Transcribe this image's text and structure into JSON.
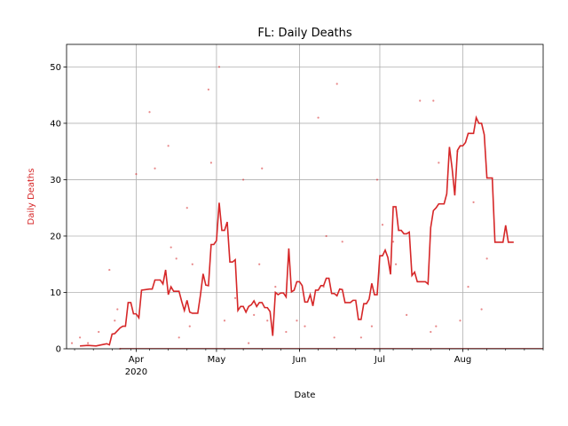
{
  "chart_data": {
    "type": "line",
    "title": "FL: Daily Deaths",
    "xlabel": "Date",
    "ylabel": "Daily Deaths",
    "x_range": [
      "2020-03-06",
      "2020-08-31"
    ],
    "ylim": [
      0,
      54
    ],
    "grid": true,
    "colors": {
      "series": "#d62728",
      "grid": "#b0b0b0",
      "axis": "#000000"
    },
    "x_ticks": [
      {
        "date": "2020-04-01",
        "label": "Apr",
        "sublabel": "2020"
      },
      {
        "date": "2020-05-01",
        "label": "May",
        "sublabel": ""
      },
      {
        "date": "2020-06-01",
        "label": "Jun",
        "sublabel": ""
      },
      {
        "date": "2020-07-01",
        "label": "Jul",
        "sublabel": ""
      },
      {
        "date": "2020-08-01",
        "label": "Aug",
        "sublabel": ""
      }
    ],
    "y_ticks": [
      0,
      10,
      20,
      30,
      40,
      50
    ],
    "daily_points": [
      [
        "2020-03-08",
        1
      ],
      [
        "2020-03-11",
        2
      ],
      [
        "2020-03-14",
        1
      ],
      [
        "2020-03-18",
        3
      ],
      [
        "2020-03-22",
        14
      ],
      [
        "2020-03-24",
        5
      ],
      [
        "2020-03-25",
        7
      ],
      [
        "2020-03-26",
        0
      ],
      [
        "2020-04-01",
        31
      ],
      [
        "2020-04-06",
        42
      ],
      [
        "2020-04-08",
        32
      ],
      [
        "2020-04-13",
        36
      ],
      [
        "2020-04-14",
        18
      ],
      [
        "2020-04-16",
        16
      ],
      [
        "2020-04-17",
        2
      ],
      [
        "2020-04-20",
        25
      ],
      [
        "2020-04-21",
        4
      ],
      [
        "2020-04-22",
        15
      ],
      [
        "2020-04-28",
        46
      ],
      [
        "2020-04-29",
        33
      ],
      [
        "2020-05-02",
        50
      ],
      [
        "2020-05-04",
        5
      ],
      [
        "2020-05-08",
        9
      ],
      [
        "2020-05-11",
        30
      ],
      [
        "2020-05-13",
        1
      ],
      [
        "2020-05-15",
        6
      ],
      [
        "2020-05-17",
        15
      ],
      [
        "2020-05-18",
        32
      ],
      [
        "2020-05-20",
        5
      ],
      [
        "2020-05-23",
        11
      ],
      [
        "2020-05-27",
        3
      ],
      [
        "2020-05-31",
        5
      ],
      [
        "2020-06-03",
        4
      ],
      [
        "2020-06-08",
        41
      ],
      [
        "2020-06-10",
        11
      ],
      [
        "2020-06-11",
        20
      ],
      [
        "2020-06-14",
        2
      ],
      [
        "2020-06-15",
        47
      ],
      [
        "2020-06-17",
        19
      ],
      [
        "2020-06-24",
        2
      ],
      [
        "2020-06-28",
        4
      ],
      [
        "2020-06-30",
        30
      ],
      [
        "2020-07-02",
        22
      ],
      [
        "2020-07-06",
        19
      ],
      [
        "2020-07-07",
        15
      ],
      [
        "2020-07-11",
        6
      ],
      [
        "2020-07-16",
        44
      ],
      [
        "2020-07-20",
        3
      ],
      [
        "2020-07-21",
        44
      ],
      [
        "2020-07-22",
        4
      ],
      [
        "2020-07-23",
        33
      ],
      [
        "2020-07-30",
        35
      ],
      [
        "2020-07-31",
        5
      ],
      [
        "2020-08-03",
        11
      ],
      [
        "2020-08-05",
        26
      ],
      [
        "2020-08-08",
        7
      ],
      [
        "2020-08-10",
        16
      ]
    ],
    "rolling_avg": [
      [
        "2020-03-11",
        0.5
      ],
      [
        "2020-03-14",
        0.6
      ],
      [
        "2020-03-17",
        0.5
      ],
      [
        "2020-03-19",
        0.7
      ],
      [
        "2020-03-21",
        0.9
      ],
      [
        "2020-03-22",
        0.7
      ],
      [
        "2020-03-23",
        2.6
      ],
      [
        "2020-03-24",
        2.7
      ],
      [
        "2020-03-26",
        3.7
      ],
      [
        "2020-03-27",
        4.0
      ],
      [
        "2020-03-28",
        4.0
      ],
      [
        "2020-03-29",
        8.2
      ],
      [
        "2020-03-30",
        8.2
      ],
      [
        "2020-03-31",
        6.2
      ],
      [
        "2020-04-01",
        6.2
      ],
      [
        "2020-04-02",
        5.5
      ],
      [
        "2020-04-03",
        10.4
      ],
      [
        "2020-04-06",
        10.6
      ],
      [
        "2020-04-07",
        10.6
      ],
      [
        "2020-04-08",
        12.2
      ],
      [
        "2020-04-10",
        12.2
      ],
      [
        "2020-04-11",
        11.5
      ],
      [
        "2020-04-12",
        14.0
      ],
      [
        "2020-04-13",
        9.6
      ],
      [
        "2020-04-14",
        11.0
      ],
      [
        "2020-04-15",
        10.2
      ],
      [
        "2020-04-17",
        10.2
      ],
      [
        "2020-04-18",
        8.4
      ],
      [
        "2020-04-19",
        6.8
      ],
      [
        "2020-04-20",
        8.6
      ],
      [
        "2020-04-21",
        6.5
      ],
      [
        "2020-04-22",
        6.3
      ],
      [
        "2020-04-24",
        6.3
      ],
      [
        "2020-04-25",
        9.5
      ],
      [
        "2020-04-26",
        13.3
      ],
      [
        "2020-04-27",
        11.3
      ],
      [
        "2020-04-28",
        11.2
      ],
      [
        "2020-04-29",
        18.5
      ],
      [
        "2020-04-30",
        18.5
      ],
      [
        "2020-05-01",
        19.2
      ],
      [
        "2020-05-02",
        25.9
      ],
      [
        "2020-05-03",
        21.0
      ],
      [
        "2020-05-04",
        21.0
      ],
      [
        "2020-05-05",
        22.5
      ],
      [
        "2020-05-06",
        15.4
      ],
      [
        "2020-05-07",
        15.4
      ],
      [
        "2020-05-08",
        15.8
      ],
      [
        "2020-05-09",
        6.8
      ],
      [
        "2020-05-10",
        7.5
      ],
      [
        "2020-05-11",
        7.5
      ],
      [
        "2020-05-12",
        6.5
      ],
      [
        "2020-05-13",
        7.5
      ],
      [
        "2020-05-14",
        7.8
      ],
      [
        "2020-05-15",
        8.5
      ],
      [
        "2020-05-16",
        7.5
      ],
      [
        "2020-05-17",
        8.2
      ],
      [
        "2020-05-18",
        8.2
      ],
      [
        "2020-05-19",
        7.3
      ],
      [
        "2020-05-20",
        7.3
      ],
      [
        "2020-05-21",
        6.6
      ],
      [
        "2020-05-22",
        2.3
      ],
      [
        "2020-05-23",
        10.0
      ],
      [
        "2020-05-24",
        9.6
      ],
      [
        "2020-05-25",
        9.9
      ],
      [
        "2020-05-26",
        9.9
      ],
      [
        "2020-05-27",
        9.2
      ],
      [
        "2020-05-28",
        17.8
      ],
      [
        "2020-05-29",
        10.1
      ],
      [
        "2020-05-30",
        10.4
      ],
      [
        "2020-05-31",
        11.9
      ],
      [
        "2020-06-01",
        11.9
      ],
      [
        "2020-06-02",
        11.2
      ],
      [
        "2020-06-03",
        8.3
      ],
      [
        "2020-06-04",
        8.3
      ],
      [
        "2020-06-05",
        9.6
      ],
      [
        "2020-06-06",
        7.6
      ],
      [
        "2020-06-07",
        10.4
      ],
      [
        "2020-06-08",
        10.4
      ],
      [
        "2020-06-09",
        11.2
      ],
      [
        "2020-06-10",
        11.2
      ],
      [
        "2020-06-11",
        12.5
      ],
      [
        "2020-06-12",
        12.5
      ],
      [
        "2020-06-13",
        9.8
      ],
      [
        "2020-06-14",
        9.8
      ],
      [
        "2020-06-15",
        9.4
      ],
      [
        "2020-06-16",
        10.6
      ],
      [
        "2020-06-17",
        10.5
      ],
      [
        "2020-06-18",
        8.2
      ],
      [
        "2020-06-19",
        8.2
      ],
      [
        "2020-06-20",
        8.2
      ],
      [
        "2020-06-21",
        8.6
      ],
      [
        "2020-06-22",
        8.6
      ],
      [
        "2020-06-23",
        5.2
      ],
      [
        "2020-06-24",
        5.2
      ],
      [
        "2020-06-25",
        8.0
      ],
      [
        "2020-06-26",
        8.0
      ],
      [
        "2020-06-27",
        8.8
      ],
      [
        "2020-06-28",
        11.6
      ],
      [
        "2020-06-29",
        9.6
      ],
      [
        "2020-06-30",
        9.6
      ],
      [
        "2020-07-01",
        16.5
      ],
      [
        "2020-07-02",
        16.5
      ],
      [
        "2020-07-03",
        17.5
      ],
      [
        "2020-07-04",
        16.2
      ],
      [
        "2020-07-05",
        13.2
      ],
      [
        "2020-07-06",
        25.2
      ],
      [
        "2020-07-07",
        25.2
      ],
      [
        "2020-07-08",
        21.0
      ],
      [
        "2020-07-09",
        21.0
      ],
      [
        "2020-07-10",
        20.4
      ],
      [
        "2020-07-11",
        20.4
      ],
      [
        "2020-07-12",
        20.7
      ],
      [
        "2020-07-13",
        13.0
      ],
      [
        "2020-07-14",
        13.6
      ],
      [
        "2020-07-15",
        11.9
      ],
      [
        "2020-07-16",
        11.9
      ],
      [
        "2020-07-17",
        11.9
      ],
      [
        "2020-07-18",
        11.9
      ],
      [
        "2020-07-19",
        11.5
      ],
      [
        "2020-07-20",
        21.5
      ],
      [
        "2020-07-21",
        24.5
      ],
      [
        "2020-07-22",
        25.0
      ],
      [
        "2020-07-23",
        25.7
      ],
      [
        "2020-07-24",
        25.7
      ],
      [
        "2020-07-25",
        25.7
      ],
      [
        "2020-07-26",
        27.5
      ],
      [
        "2020-07-27",
        35.8
      ],
      [
        "2020-07-28",
        32.0
      ],
      [
        "2020-07-29",
        27.2
      ],
      [
        "2020-07-30",
        35.2
      ],
      [
        "2020-07-31",
        36.0
      ],
      [
        "2020-08-01",
        36.0
      ],
      [
        "2020-08-02",
        36.6
      ],
      [
        "2020-08-03",
        38.2
      ],
      [
        "2020-08-04",
        38.2
      ],
      [
        "2020-08-05",
        38.2
      ],
      [
        "2020-08-06",
        41.0
      ],
      [
        "2020-08-07",
        40.0
      ],
      [
        "2020-08-08",
        40.0
      ],
      [
        "2020-08-09",
        38.0
      ],
      [
        "2020-08-10",
        30.3
      ],
      [
        "2020-08-11",
        30.3
      ],
      [
        "2020-08-12",
        30.3
      ],
      [
        "2020-08-13",
        18.9
      ],
      [
        "2020-08-14",
        18.9
      ],
      [
        "2020-08-15",
        18.9
      ],
      [
        "2020-08-16",
        18.9
      ],
      [
        "2020-08-17",
        21.9
      ],
      [
        "2020-08-18",
        18.9
      ],
      [
        "2020-08-19",
        18.9
      ],
      [
        "2020-08-20",
        18.9
      ]
    ]
  }
}
